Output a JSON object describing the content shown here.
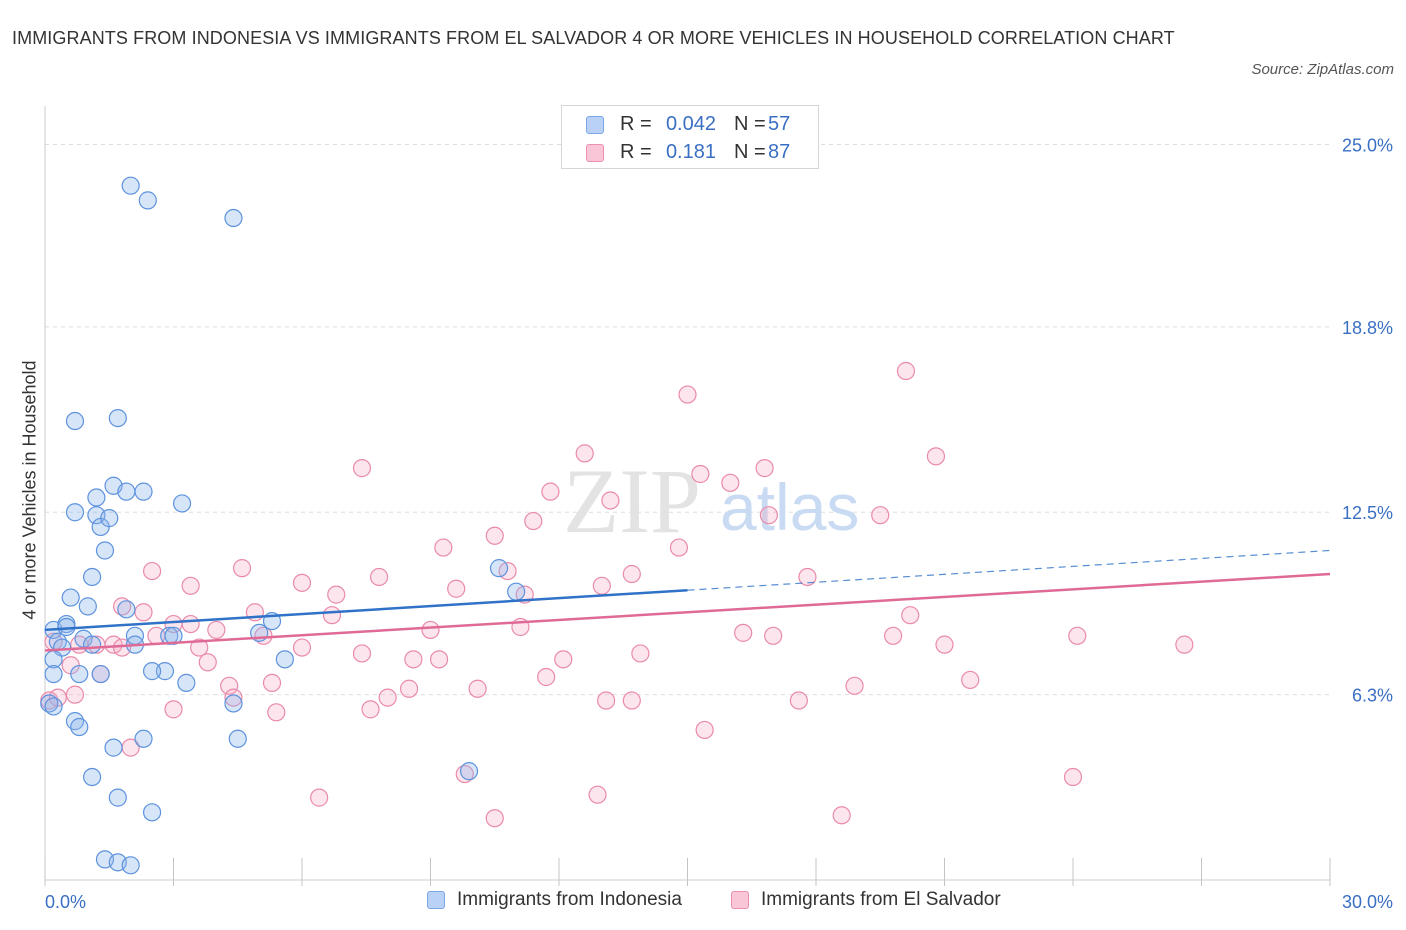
{
  "title": "IMMIGRANTS FROM INDONESIA VS IMMIGRANTS FROM EL SALVADOR 4 OR MORE VEHICLES IN HOUSEHOLD CORRELATION CHART",
  "source": "Source: ZipAtlas.com",
  "watermark": {
    "zip": "ZIP",
    "atlas": "atlas"
  },
  "legend": {
    "r_label": "R =",
    "n_label": "N =",
    "rows": [
      {
        "r": "0.042",
        "n": "57",
        "fill": "#b8d1f5",
        "stroke": "#7aa7e6"
      },
      {
        "r": "0.181",
        "n": "87",
        "fill": "#f8c6d6",
        "stroke": "#ee8fb0"
      }
    ]
  },
  "colors": {
    "blue_fill": "rgba(140,180,235,0.35)",
    "blue_stroke": "#5d93de",
    "blue_line": "#2f72c8",
    "pink_fill": "rgba(244,170,195,0.30)",
    "pink_stroke": "#ea8aab",
    "pink_line": "#e06a96",
    "tick_label": "#3a6fc4",
    "grid": "#dddddd"
  },
  "chart_data": {
    "type": "scatter",
    "title": "IMMIGRANTS FROM INDONESIA VS IMMIGRANTS FROM EL SALVADOR 4 OR MORE VEHICLES IN HOUSEHOLD CORRELATION CHART",
    "xlabel": "",
    "ylabel": "4 or more Vehicles in Household",
    "xlim": [
      0,
      30
    ],
    "ylim": [
      0,
      25.9
    ],
    "x_tick_labels": [
      "0.0%",
      "30.0%"
    ],
    "y_ticks": [
      6.3,
      12.5,
      18.8,
      25.0
    ],
    "y_tick_labels": [
      "6.3%",
      "12.5%",
      "18.8%",
      "25.0%"
    ],
    "grid": true,
    "legend_position": "top-center",
    "series": [
      {
        "name": "Immigrants from Indonesia",
        "r": 0.042,
        "n": 57,
        "trend": {
          "x0": 0,
          "y0": 8.5,
          "x1": 15,
          "y1": 9.85,
          "dashed_to_x": 30,
          "dashed_to_y": 11.2
        },
        "points": [
          [
            2.0,
            23.6
          ],
          [
            2.4,
            23.1
          ],
          [
            4.4,
            22.5
          ],
          [
            1.7,
            15.7
          ],
          [
            0.7,
            15.6
          ],
          [
            1.6,
            13.4
          ],
          [
            1.9,
            13.2
          ],
          [
            2.3,
            13.2
          ],
          [
            3.2,
            12.8
          ],
          [
            0.7,
            12.5
          ],
          [
            1.2,
            12.4
          ],
          [
            1.3,
            12.0
          ],
          [
            1.5,
            12.3
          ],
          [
            1.2,
            13.0
          ],
          [
            1.4,
            11.2
          ],
          [
            1.1,
            10.3
          ],
          [
            0.6,
            9.6
          ],
          [
            1.0,
            9.3
          ],
          [
            1.9,
            9.2
          ],
          [
            0.2,
            8.5
          ],
          [
            0.5,
            8.7
          ],
          [
            0.5,
            8.6
          ],
          [
            0.3,
            8.1
          ],
          [
            0.9,
            8.2
          ],
          [
            1.1,
            8.0
          ],
          [
            0.4,
            7.9
          ],
          [
            0.2,
            7.5
          ],
          [
            0.8,
            7.0
          ],
          [
            1.3,
            7.0
          ],
          [
            2.1,
            8.3
          ],
          [
            2.1,
            8.0
          ],
          [
            2.9,
            8.3
          ],
          [
            2.8,
            7.1
          ],
          [
            2.5,
            7.1
          ],
          [
            3.3,
            6.7
          ],
          [
            0.2,
            7.0
          ],
          [
            0.1,
            6.0
          ],
          [
            0.2,
            5.9
          ],
          [
            0.7,
            5.4
          ],
          [
            0.8,
            5.2
          ],
          [
            1.6,
            4.5
          ],
          [
            2.3,
            4.8
          ],
          [
            4.4,
            6.0
          ],
          [
            4.5,
            4.8
          ],
          [
            5.0,
            8.4
          ],
          [
            5.3,
            8.8
          ],
          [
            5.6,
            7.5
          ],
          [
            10.6,
            10.6
          ],
          [
            11.0,
            9.8
          ],
          [
            9.9,
            3.7
          ],
          [
            1.1,
            3.5
          ],
          [
            1.7,
            2.8
          ],
          [
            2.5,
            2.3
          ],
          [
            1.4,
            0.7
          ],
          [
            1.7,
            0.6
          ],
          [
            2.0,
            0.5
          ],
          [
            3.0,
            8.3
          ]
        ]
      },
      {
        "name": "Immigrants from El Salvador",
        "r": 0.181,
        "n": 87,
        "trend": {
          "x0": 0,
          "y0": 7.8,
          "x1": 30,
          "y1": 10.4
        },
        "points": [
          [
            20.1,
            17.3
          ],
          [
            15.0,
            16.5
          ],
          [
            12.6,
            14.5
          ],
          [
            20.8,
            14.4
          ],
          [
            16.8,
            14.0
          ],
          [
            7.4,
            14.0
          ],
          [
            15.3,
            13.8
          ],
          [
            16.0,
            13.5
          ],
          [
            11.8,
            13.2
          ],
          [
            13.2,
            12.9
          ],
          [
            16.9,
            12.4
          ],
          [
            19.5,
            12.4
          ],
          [
            11.4,
            12.2
          ],
          [
            10.5,
            11.7
          ],
          [
            9.3,
            11.3
          ],
          [
            14.8,
            11.3
          ],
          [
            2.5,
            10.5
          ],
          [
            4.6,
            10.6
          ],
          [
            10.8,
            10.5
          ],
          [
            13.7,
            10.4
          ],
          [
            7.8,
            10.3
          ],
          [
            17.8,
            10.3
          ],
          [
            13.0,
            10.0
          ],
          [
            6.0,
            10.1
          ],
          [
            9.6,
            9.9
          ],
          [
            6.8,
            9.7
          ],
          [
            11.2,
            9.7
          ],
          [
            1.8,
            9.3
          ],
          [
            2.3,
            9.1
          ],
          [
            4.9,
            9.1
          ],
          [
            6.7,
            9.0
          ],
          [
            20.2,
            9.0
          ],
          [
            3.0,
            8.7
          ],
          [
            3.4,
            8.7
          ],
          [
            11.1,
            8.6
          ],
          [
            9.0,
            8.5
          ],
          [
            4.0,
            8.5
          ],
          [
            2.6,
            8.3
          ],
          [
            5.1,
            8.3
          ],
          [
            16.3,
            8.4
          ],
          [
            17.0,
            8.3
          ],
          [
            19.8,
            8.3
          ],
          [
            24.1,
            8.3
          ],
          [
            0.8,
            8.0
          ],
          [
            1.2,
            8.0
          ],
          [
            1.6,
            8.0
          ],
          [
            1.8,
            7.9
          ],
          [
            3.6,
            7.9
          ],
          [
            6.0,
            7.9
          ],
          [
            7.4,
            7.7
          ],
          [
            8.6,
            7.5
          ],
          [
            9.2,
            7.5
          ],
          [
            12.1,
            7.5
          ],
          [
            13.9,
            7.7
          ],
          [
            21.0,
            8.0
          ],
          [
            26.6,
            8.0
          ],
          [
            0.6,
            7.3
          ],
          [
            3.8,
            7.4
          ],
          [
            1.3,
            7.0
          ],
          [
            5.3,
            6.7
          ],
          [
            4.3,
            6.6
          ],
          [
            8.5,
            6.5
          ],
          [
            10.1,
            6.5
          ],
          [
            11.7,
            6.9
          ],
          [
            8.0,
            6.2
          ],
          [
            4.4,
            6.2
          ],
          [
            0.1,
            6.1
          ],
          [
            0.3,
            6.2
          ],
          [
            0.7,
            6.3
          ],
          [
            3.0,
            5.8
          ],
          [
            5.4,
            5.7
          ],
          [
            7.6,
            5.8
          ],
          [
            13.1,
            6.1
          ],
          [
            13.7,
            6.1
          ],
          [
            17.6,
            6.1
          ],
          [
            21.6,
            6.8
          ],
          [
            18.9,
            6.6
          ],
          [
            15.4,
            5.1
          ],
          [
            9.8,
            3.6
          ],
          [
            10.5,
            2.1
          ],
          [
            6.4,
            2.8
          ],
          [
            12.9,
            2.9
          ],
          [
            18.6,
            2.2
          ],
          [
            24.0,
            3.5
          ],
          [
            2.0,
            4.5
          ],
          [
            0.2,
            8.1
          ],
          [
            3.4,
            10.0
          ]
        ]
      }
    ]
  }
}
